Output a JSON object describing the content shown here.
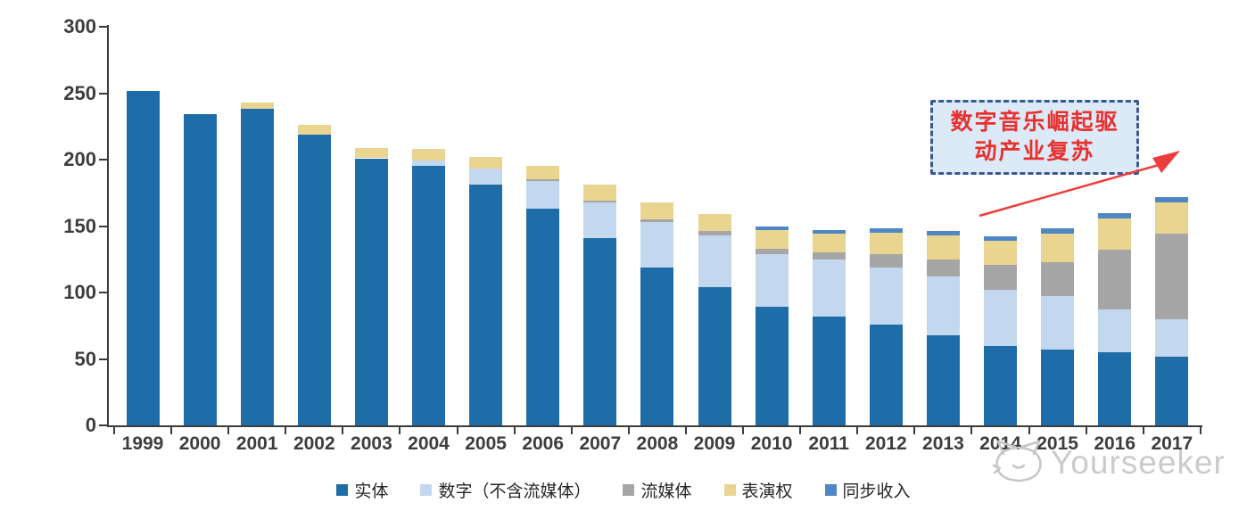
{
  "chart_data": {
    "type": "bar",
    "stacked": true,
    "categories": [
      "1999",
      "2000",
      "2001",
      "2002",
      "2003",
      "2004",
      "2005",
      "2006",
      "2007",
      "2008",
      "2009",
      "2010",
      "2011",
      "2012",
      "2013",
      "2014",
      "2015",
      "2016",
      "2017"
    ],
    "series": [
      {
        "name": "实体",
        "color": "#1f6da8",
        "values": [
          252,
          234,
          238,
          219,
          201,
          195,
          181,
          163,
          141,
          119,
          104,
          89,
          82,
          76,
          68,
          60,
          57,
          55,
          52
        ]
      },
      {
        "name": "数字（不含流媒体）",
        "color": "#c3d8ef",
        "values": [
          0,
          0,
          0,
          0,
          0,
          4,
          12,
          21,
          27,
          34,
          39,
          40,
          43,
          43,
          44,
          42,
          40,
          32,
          28
        ]
      },
      {
        "name": "流媒体",
        "color": "#a6a6a6",
        "values": [
          0,
          0,
          0,
          0,
          0,
          0,
          0,
          1,
          1,
          2,
          3,
          4,
          5,
          10,
          13,
          19,
          26,
          45,
          64
        ]
      },
      {
        "name": "表演权",
        "color": "#e9d490",
        "values": [
          0,
          0,
          5,
          7,
          8,
          9,
          9,
          10,
          12,
          13,
          13,
          14,
          14,
          16,
          18,
          18,
          21,
          24,
          24
        ]
      },
      {
        "name": "同步收入",
        "color": "#4f87c5",
        "values": [
          0,
          0,
          0,
          0,
          0,
          0,
          0,
          0,
          0,
          0,
          0,
          3,
          3,
          3,
          3,
          3,
          4,
          4,
          4
        ]
      }
    ],
    "ylim": [
      0,
      300
    ],
    "yticks": [
      0,
      50,
      100,
      150,
      200,
      250,
      300
    ],
    "grid": false,
    "legend_position": "bottom"
  },
  "annotation": {
    "line1": "数字音乐崛起驱",
    "line2": "动产业复苏",
    "fill_color": "#dce9f7",
    "border_color": "#3a5794",
    "text_color": "#e8302e",
    "arrow_color": "#ed3d3d"
  },
  "watermark": {
    "text": "Yourseeker",
    "color": "#cbcbcb"
  }
}
